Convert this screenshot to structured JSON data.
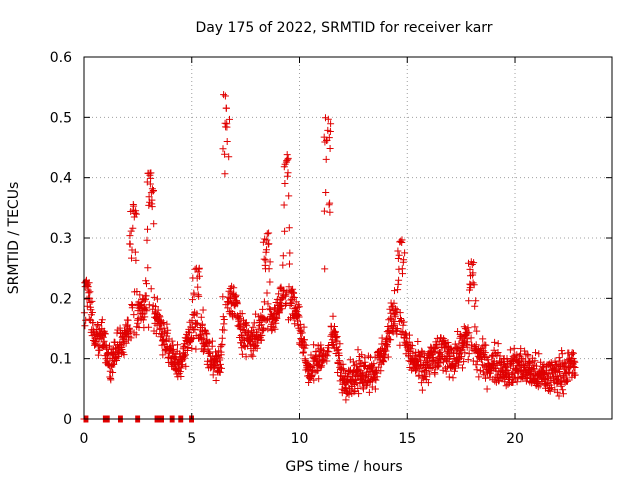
{
  "chart_data": {
    "type": "scatter",
    "title": "Day 175 of 2022, SRMTID for receiver karr",
    "xlabel": "GPS time / hours",
    "ylabel": "SRMTID / TECUs",
    "xlim": [
      0,
      24.5
    ],
    "ylim": [
      0,
      0.6
    ],
    "xticks": [
      0,
      5,
      10,
      15,
      20
    ],
    "yticks": [
      0,
      0.1,
      0.2,
      0.3,
      0.4,
      0.5,
      0.6
    ],
    "xtick_labels": [
      "0",
      "5",
      "10",
      "15",
      "20"
    ],
    "ytick_labels": [
      "0",
      "0.1",
      "0.2",
      "0.3",
      "0.4",
      "0.5",
      "0.6"
    ],
    "grid": true,
    "marker": "plus",
    "color": "#e00000",
    "zero_segments": [
      [
        0.0,
        0.2
      ],
      [
        0.9,
        1.2
      ],
      [
        1.6,
        1.8
      ],
      [
        2.4,
        2.6
      ],
      [
        3.3,
        3.7
      ],
      [
        4.0,
        4.2
      ],
      [
        4.4,
        4.6
      ],
      [
        4.9,
        5.1
      ]
    ],
    "trend": [
      [
        0.0,
        0.15
      ],
      [
        0.2,
        0.2
      ],
      [
        0.5,
        0.13
      ],
      [
        0.8,
        0.14
      ],
      [
        1.2,
        0.09
      ],
      [
        1.6,
        0.12
      ],
      [
        2.0,
        0.14
      ],
      [
        2.3,
        0.17
      ],
      [
        2.6,
        0.18
      ],
      [
        2.9,
        0.19
      ],
      [
        3.2,
        0.18
      ],
      [
        3.5,
        0.16
      ],
      [
        3.8,
        0.13
      ],
      [
        4.2,
        0.09
      ],
      [
        4.6,
        0.1
      ],
      [
        5.0,
        0.15
      ],
      [
        5.3,
        0.16
      ],
      [
        5.7,
        0.12
      ],
      [
        6.0,
        0.09
      ],
      [
        6.3,
        0.1
      ],
      [
        6.7,
        0.2
      ],
      [
        7.0,
        0.19
      ],
      [
        7.4,
        0.14
      ],
      [
        7.8,
        0.13
      ],
      [
        8.2,
        0.15
      ],
      [
        8.5,
        0.18
      ],
      [
        8.8,
        0.17
      ],
      [
        9.2,
        0.2
      ],
      [
        9.6,
        0.2
      ],
      [
        10.0,
        0.16
      ],
      [
        10.4,
        0.08
      ],
      [
        10.8,
        0.09
      ],
      [
        11.2,
        0.11
      ],
      [
        11.6,
        0.14
      ],
      [
        12.0,
        0.07
      ],
      [
        12.5,
        0.07
      ],
      [
        13.0,
        0.08
      ],
      [
        13.5,
        0.08
      ],
      [
        14.0,
        0.12
      ],
      [
        14.4,
        0.18
      ],
      [
        14.8,
        0.14
      ],
      [
        15.2,
        0.1
      ],
      [
        15.7,
        0.08
      ],
      [
        16.2,
        0.1
      ],
      [
        16.7,
        0.11
      ],
      [
        17.2,
        0.1
      ],
      [
        17.7,
        0.13
      ],
      [
        18.2,
        0.11
      ],
      [
        18.7,
        0.09
      ],
      [
        19.2,
        0.09
      ],
      [
        19.7,
        0.08
      ],
      [
        20.2,
        0.09
      ],
      [
        20.7,
        0.08
      ],
      [
        21.2,
        0.07
      ],
      [
        21.7,
        0.07
      ],
      [
        22.2,
        0.08
      ],
      [
        22.8,
        0.09
      ]
    ],
    "spikes": [
      {
        "x": 0.1,
        "y": 0.23
      },
      {
        "x": 2.3,
        "y": 0.36
      },
      {
        "x": 3.1,
        "y": 0.41
      },
      {
        "x": 5.2,
        "y": 0.25
      },
      {
        "x": 6.6,
        "y": 0.54
      },
      {
        "x": 8.5,
        "y": 0.31
      },
      {
        "x": 9.4,
        "y": 0.44
      },
      {
        "x": 11.3,
        "y": 0.52
      },
      {
        "x": 14.7,
        "y": 0.3
      },
      {
        "x": 18.0,
        "y": 0.27
      }
    ]
  }
}
